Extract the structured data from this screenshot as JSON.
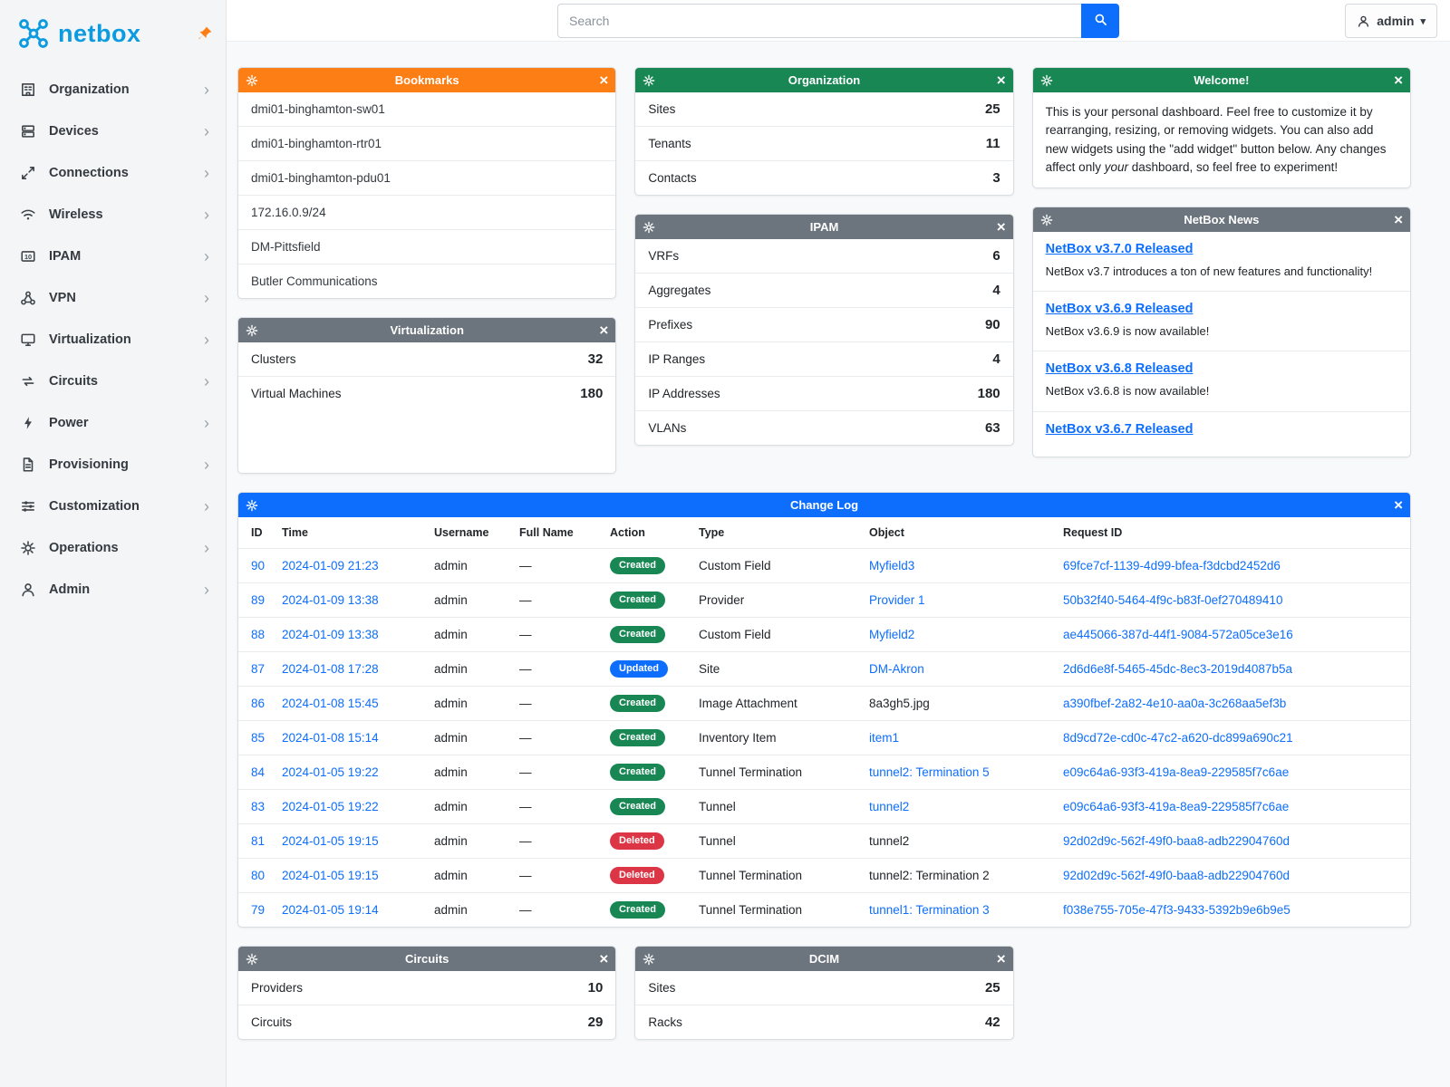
{
  "brand": {
    "name": "netbox"
  },
  "topbar": {
    "search_placeholder": "Search",
    "user_label": "admin"
  },
  "sidebar": {
    "items": [
      {
        "label": "Organization",
        "icon": "building-icon"
      },
      {
        "label": "Devices",
        "icon": "server-icon"
      },
      {
        "label": "Connections",
        "icon": "connections-icon"
      },
      {
        "label": "Wireless",
        "icon": "wifi-icon"
      },
      {
        "label": "IPAM",
        "icon": "ipam-icon"
      },
      {
        "label": "VPN",
        "icon": "vpn-icon"
      },
      {
        "label": "Virtualization",
        "icon": "monitor-icon"
      },
      {
        "label": "Circuits",
        "icon": "circuits-icon"
      },
      {
        "label": "Power",
        "icon": "power-icon"
      },
      {
        "label": "Provisioning",
        "icon": "document-icon"
      },
      {
        "label": "Customization",
        "icon": "sliders-icon"
      },
      {
        "label": "Operations",
        "icon": "gears-icon"
      },
      {
        "label": "Admin",
        "icon": "person-icon"
      }
    ]
  },
  "widgets": {
    "bookmarks": {
      "title": "Bookmarks",
      "color": "#fd7e14",
      "items": [
        "dmi01-binghamton-sw01",
        "dmi01-binghamton-rtr01",
        "dmi01-binghamton-pdu01",
        "172.16.0.9/24",
        "DM-Pittsfield",
        "Butler Communications"
      ]
    },
    "organization": {
      "title": "Organization",
      "color": "#198754",
      "stats": [
        {
          "label": "Sites",
          "value": "25"
        },
        {
          "label": "Tenants",
          "value": "11"
        },
        {
          "label": "Contacts",
          "value": "3"
        }
      ]
    },
    "welcome": {
      "title": "Welcome!",
      "color": "#198754",
      "text_1": "This is your personal dashboard. Feel free to customize it by rearranging, resizing, or removing widgets. You can also add new widgets using the \"add widget\" button below. Any changes affect only ",
      "text_italic": "your",
      "text_2": " dashboard, so feel free to experiment!"
    },
    "virtualization": {
      "title": "Virtualization",
      "color": "#6c757d",
      "stats": [
        {
          "label": "Clusters",
          "value": "32"
        },
        {
          "label": "Virtual Machines",
          "value": "180"
        }
      ]
    },
    "ipam": {
      "title": "IPAM",
      "color": "#6c757d",
      "stats": [
        {
          "label": "VRFs",
          "value": "6"
        },
        {
          "label": "Aggregates",
          "value": "4"
        },
        {
          "label": "Prefixes",
          "value": "90"
        },
        {
          "label": "IP Ranges",
          "value": "4"
        },
        {
          "label": "IP Addresses",
          "value": "180"
        },
        {
          "label": "VLANs",
          "value": "63"
        }
      ]
    },
    "news": {
      "title": "NetBox News",
      "color": "#6c757d",
      "items": [
        {
          "title": "NetBox v3.7.0 Released",
          "text": "NetBox v3.7 introduces a ton of new features and functionality!"
        },
        {
          "title": "NetBox v3.6.9 Released",
          "text": "NetBox v3.6.9 is now available!"
        },
        {
          "title": "NetBox v3.6.8 Released",
          "text": "NetBox v3.6.8 is now available!"
        },
        {
          "title": "NetBox v3.6.7 Released",
          "text": ""
        }
      ]
    },
    "circuits": {
      "title": "Circuits",
      "color": "#6c757d",
      "stats": [
        {
          "label": "Providers",
          "value": "10"
        },
        {
          "label": "Circuits",
          "value": "29"
        }
      ]
    },
    "dcim": {
      "title": "DCIM",
      "color": "#6c757d",
      "stats": [
        {
          "label": "Sites",
          "value": "25"
        },
        {
          "label": "Racks",
          "value": "42"
        }
      ]
    }
  },
  "changelog": {
    "title": "Change Log",
    "color": "#0d6efd",
    "columns": [
      "ID",
      "Time",
      "Username",
      "Full Name",
      "Action",
      "Type",
      "Object",
      "Request ID"
    ],
    "rows": [
      {
        "id": "90",
        "time": "2024-01-09 21:23",
        "username": "admin",
        "full_name": "—",
        "action": "Created",
        "type": "Custom Field",
        "object": "Myfield3",
        "object_link": true,
        "request_id": "69fce7cf-1139-4d99-bfea-f3dcbd2452d6"
      },
      {
        "id": "89",
        "time": "2024-01-09 13:38",
        "username": "admin",
        "full_name": "—",
        "action": "Created",
        "type": "Provider",
        "object": "Provider 1",
        "object_link": true,
        "request_id": "50b32f40-5464-4f9c-b83f-0ef270489410"
      },
      {
        "id": "88",
        "time": "2024-01-09 13:38",
        "username": "admin",
        "full_name": "—",
        "action": "Created",
        "type": "Custom Field",
        "object": "Myfield2",
        "object_link": true,
        "request_id": "ae445066-387d-44f1-9084-572a05ce3e16"
      },
      {
        "id": "87",
        "time": "2024-01-08 17:28",
        "username": "admin",
        "full_name": "—",
        "action": "Updated",
        "type": "Site",
        "object": "DM-Akron",
        "object_link": true,
        "request_id": "2d6d6e8f-5465-45dc-8ec3-2019d4087b5a"
      },
      {
        "id": "86",
        "time": "2024-01-08 15:45",
        "username": "admin",
        "full_name": "—",
        "action": "Created",
        "type": "Image Attachment",
        "object": "8a3gh5.jpg",
        "object_link": false,
        "request_id": "a390fbef-2a82-4e10-aa0a-3c268aa5ef3b"
      },
      {
        "id": "85",
        "time": "2024-01-08 15:14",
        "username": "admin",
        "full_name": "—",
        "action": "Created",
        "type": "Inventory Item",
        "object": "item1",
        "object_link": true,
        "request_id": "8d9cd72e-cd0c-47c2-a620-dc899a690c21"
      },
      {
        "id": "84",
        "time": "2024-01-05 19:22",
        "username": "admin",
        "full_name": "—",
        "action": "Created",
        "type": "Tunnel Termination",
        "object": "tunnel2: Termination 5",
        "object_link": true,
        "request_id": "e09c64a6-93f3-419a-8ea9-229585f7c6ae"
      },
      {
        "id": "83",
        "time": "2024-01-05 19:22",
        "username": "admin",
        "full_name": "—",
        "action": "Created",
        "type": "Tunnel",
        "object": "tunnel2",
        "object_link": true,
        "request_id": "e09c64a6-93f3-419a-8ea9-229585f7c6ae"
      },
      {
        "id": "81",
        "time": "2024-01-05 19:15",
        "username": "admin",
        "full_name": "—",
        "action": "Deleted",
        "type": "Tunnel",
        "object": "tunnel2",
        "object_link": false,
        "request_id": "92d02d9c-562f-49f0-baa8-adb22904760d"
      },
      {
        "id": "80",
        "time": "2024-01-05 19:15",
        "username": "admin",
        "full_name": "—",
        "action": "Deleted",
        "type": "Tunnel Termination",
        "object": "tunnel2: Termination 2",
        "object_link": false,
        "request_id": "92d02d9c-562f-49f0-baa8-adb22904760d"
      },
      {
        "id": "79",
        "time": "2024-01-05 19:14",
        "username": "admin",
        "full_name": "—",
        "action": "Created",
        "type": "Tunnel Termination",
        "object": "tunnel1: Termination 3",
        "object_link": true,
        "request_id": "f038e755-705e-47f3-9433-5392b9e6b9e5"
      }
    ]
  },
  "badge_colors": {
    "Created": "#198754",
    "Updated": "#0d6efd",
    "Deleted": "#dc3545"
  }
}
